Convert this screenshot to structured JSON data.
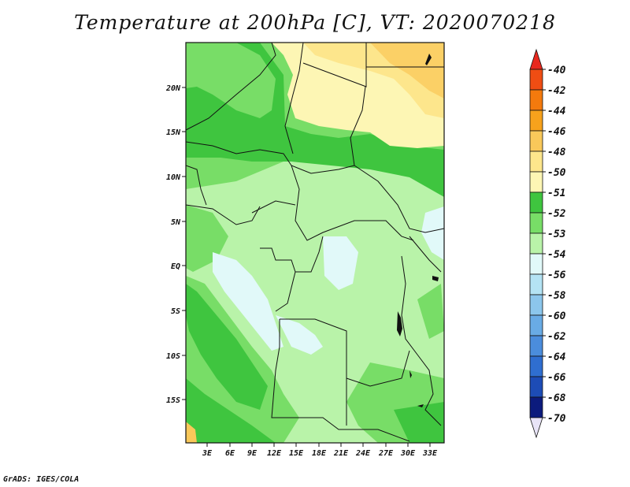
{
  "title": "Temperature at 200hPa [C], VT: 2020070218",
  "footer": "GrADS: IGES/COLA",
  "map": {
    "lat_labels": [
      "20N",
      "15N",
      "10N",
      "5N",
      "EQ",
      "5S",
      "10S",
      "15S"
    ],
    "lon_labels": [
      "3E",
      "6E",
      "9E",
      "12E",
      "15E",
      "18E",
      "21E",
      "24E",
      "27E",
      "30E",
      "33E"
    ]
  },
  "colorbar": {
    "entries": [
      {
        "label": "-40",
        "color": "#e8281e"
      },
      {
        "label": "-42",
        "color": "#ef4d13"
      },
      {
        "label": "-44",
        "color": "#f47a0d"
      },
      {
        "label": "-46",
        "color": "#f7a21c"
      },
      {
        "label": "-48",
        "color": "#f9c85a"
      },
      {
        "label": "-50",
        "color": "#fde68c"
      },
      {
        "label": "-51",
        "color": "#fdf6b4"
      },
      {
        "label": "-52",
        "color": "#3fc53f"
      },
      {
        "label": "-53",
        "color": "#78dd67"
      },
      {
        "label": "-54",
        "color": "#b9f3a9"
      },
      {
        "label": "-56",
        "color": "#e1f9f9"
      },
      {
        "label": "-58",
        "color": "#b4e3f4"
      },
      {
        "label": "-60",
        "color": "#8cc6ec"
      },
      {
        "label": "-62",
        "color": "#69abe5"
      },
      {
        "label": "-64",
        "color": "#4b8ddc"
      },
      {
        "label": "-66",
        "color": "#2f6ed0"
      },
      {
        "label": "-68",
        "color": "#1d4cb6"
      },
      {
        "label": "-70",
        "color": "#0c1b7d"
      }
    ],
    "bottom_arrow_color": "#e8e4f7"
  }
}
